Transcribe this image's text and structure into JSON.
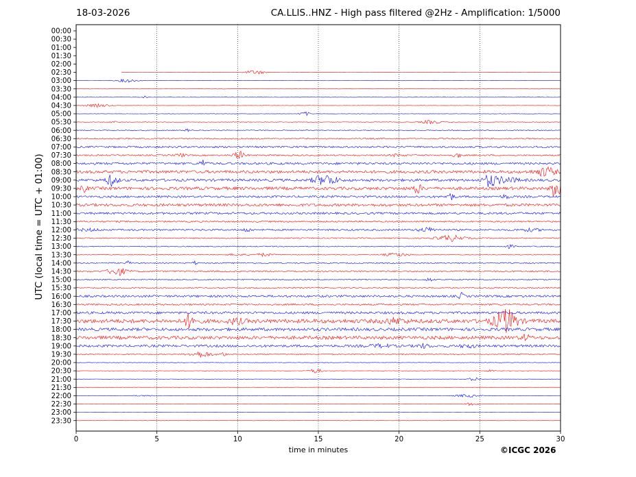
{
  "chart_data": {
    "type": "line",
    "title_left": "18-03-2026",
    "title_right": "CA.LLIS..HNZ - High pass filtered @2Hz - Amplification: 1/5000",
    "xlabel": "time in minutes",
    "ylabel": "UTC (local time = UTC + 01:00)",
    "credit": "©ICGC 2026",
    "xlim": [
      0,
      30
    ],
    "x_ticks": [
      "0",
      "5",
      "10",
      "15",
      "20",
      "25",
      "30"
    ],
    "x_tick_values": [
      0,
      5,
      10,
      15,
      20,
      25,
      30
    ],
    "vertical_gridlines": [
      5,
      10,
      15,
      20,
      25
    ],
    "grid": "vertical dotted",
    "trace_colors": [
      "#0000ff",
      "#ff0000"
    ],
    "rows": [
      {
        "label": "00:00",
        "level": 0,
        "start": 30
      },
      {
        "label": "00:30",
        "level": 0,
        "start": 30
      },
      {
        "label": "01:00",
        "level": 0,
        "start": 30
      },
      {
        "label": "01:30",
        "level": 0,
        "start": 30
      },
      {
        "label": "02:00",
        "level": 0,
        "start": 30
      },
      {
        "label": "02:30",
        "level": 0.08,
        "start": 2.8
      },
      {
        "label": "03:00",
        "level": 0.08,
        "start": 0
      },
      {
        "label": "03:30",
        "level": 0.08,
        "start": 0
      },
      {
        "label": "04:00",
        "level": 0.12,
        "start": 0
      },
      {
        "label": "04:30",
        "level": 0.1,
        "start": 0
      },
      {
        "label": "05:00",
        "level": 0.12,
        "start": 0
      },
      {
        "label": "05:30",
        "level": 0.2,
        "start": 0
      },
      {
        "label": "06:00",
        "level": 0.3,
        "start": 0
      },
      {
        "label": "06:30",
        "level": 0.4,
        "start": 0
      },
      {
        "label": "07:00",
        "level": 0.6,
        "start": 0
      },
      {
        "label": "07:30",
        "level": 0.45,
        "start": 0
      },
      {
        "label": "08:00",
        "level": 0.75,
        "start": 0
      },
      {
        "label": "08:30",
        "level": 0.95,
        "start": 0
      },
      {
        "label": "09:00",
        "level": 0.85,
        "start": 0
      },
      {
        "label": "09:30",
        "level": 1.0,
        "start": 0
      },
      {
        "label": "10:00",
        "level": 0.7,
        "start": 0
      },
      {
        "label": "10:30",
        "level": 0.9,
        "start": 0
      },
      {
        "label": "11:00",
        "level": 0.7,
        "start": 0
      },
      {
        "label": "11:30",
        "level": 0.5,
        "start": 0
      },
      {
        "label": "12:00",
        "level": 0.55,
        "start": 0
      },
      {
        "label": "12:30",
        "level": 0.35,
        "start": 0
      },
      {
        "label": "13:00",
        "level": 0.3,
        "start": 0
      },
      {
        "label": "13:30",
        "level": 0.25,
        "start": 0
      },
      {
        "label": "14:00",
        "level": 0.35,
        "start": 0
      },
      {
        "label": "14:30",
        "level": 0.5,
        "start": 0
      },
      {
        "label": "15:00",
        "level": 0.35,
        "start": 0
      },
      {
        "label": "15:30",
        "level": 0.4,
        "start": 0
      },
      {
        "label": "16:00",
        "level": 0.7,
        "start": 0
      },
      {
        "label": "16:30",
        "level": 0.55,
        "start": 0
      },
      {
        "label": "17:00",
        "level": 0.8,
        "start": 0
      },
      {
        "label": "17:30",
        "level": 1.3,
        "start": 0
      },
      {
        "label": "18:00",
        "level": 1.0,
        "start": 0
      },
      {
        "label": "18:30",
        "level": 1.1,
        "start": 0
      },
      {
        "label": "19:00",
        "level": 0.8,
        "start": 0
      },
      {
        "label": "19:30",
        "level": 0.35,
        "start": 0
      },
      {
        "label": "20:00",
        "level": 0.15,
        "start": 0
      },
      {
        "label": "20:30",
        "level": 0.12,
        "start": 0
      },
      {
        "label": "21:00",
        "level": 0.1,
        "start": 0
      },
      {
        "label": "21:30",
        "level": 0.1,
        "start": 0
      },
      {
        "label": "22:00",
        "level": 0.1,
        "start": 0
      },
      {
        "label": "22:30",
        "level": 0.1,
        "start": 0
      },
      {
        "label": "23:00",
        "level": 0.08,
        "start": 0
      },
      {
        "label": "23:30",
        "level": 0.08,
        "start": 0
      }
    ]
  }
}
